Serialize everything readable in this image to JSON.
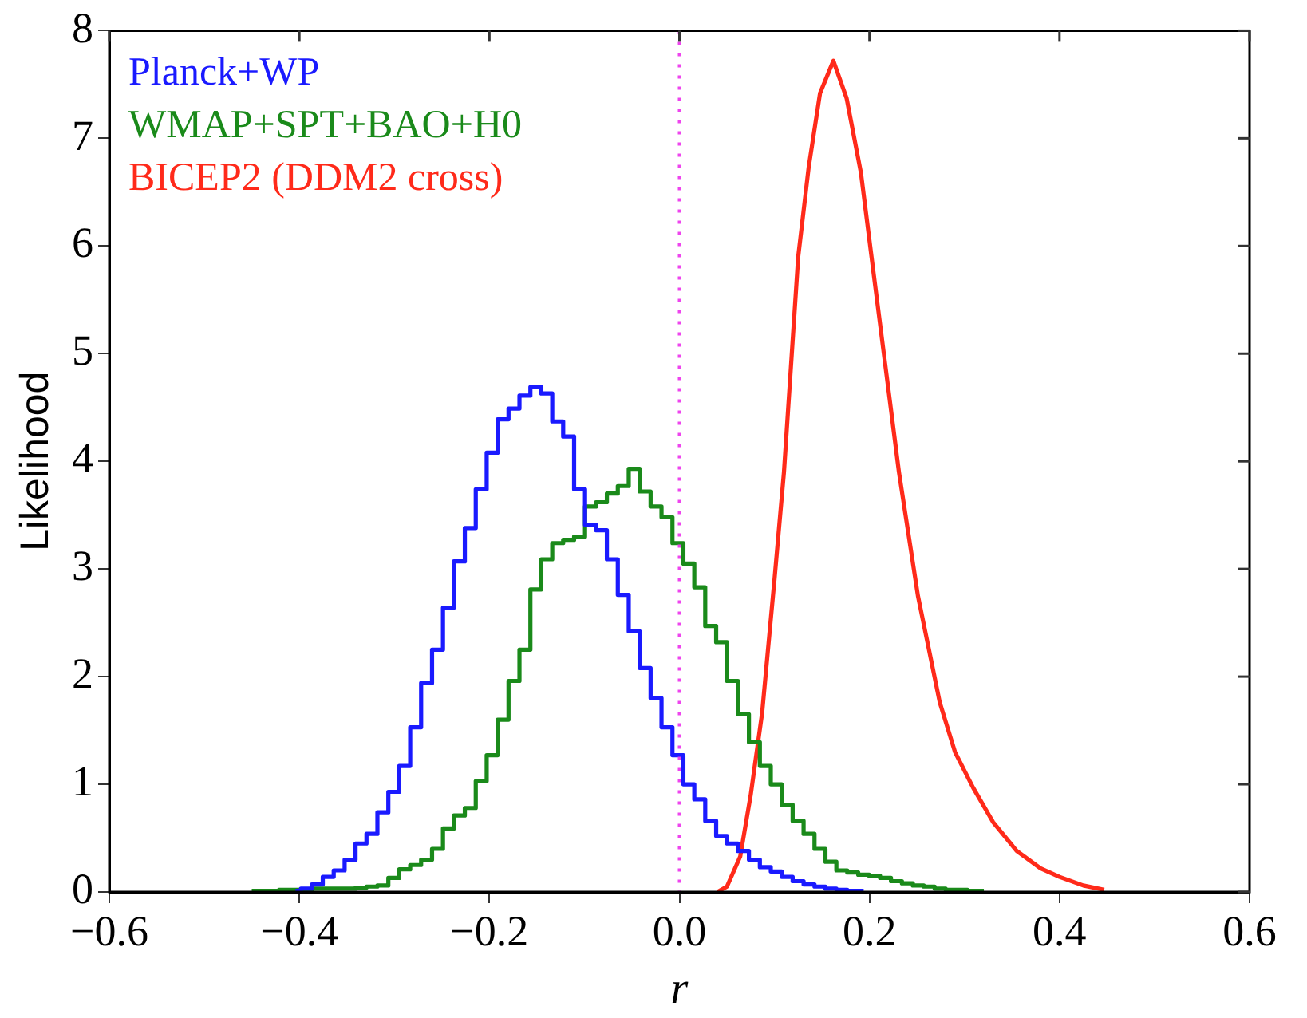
{
  "chart_data": {
    "type": "step",
    "xlabel": "r",
    "ylabel": "Likelihood",
    "x": [
      -0.4501,
      -0.4386,
      -0.4271,
      -0.4156,
      -0.4041,
      -0.3926,
      -0.3811,
      -0.3696,
      -0.3581,
      -0.3466,
      -0.3351,
      -0.3236,
      -0.3121,
      -0.3006,
      -0.2891,
      -0.2776,
      -0.2661,
      -0.2546,
      -0.2431,
      -0.2316,
      -0.2201,
      -0.2086,
      -0.1971,
      -0.1856,
      -0.1741,
      -0.1626,
      -0.1511,
      -0.1396,
      -0.1281,
      -0.1166,
      -0.1051,
      -0.0936,
      -0.0821,
      -0.0706,
      -0.0591,
      -0.0476,
      -0.0361,
      -0.0246,
      -0.0131,
      -0.0016,
      0.0099,
      0.0214,
      0.0329,
      0.0444,
      0.0559,
      0.0674,
      0.0789,
      0.0904,
      0.1019,
      0.1134,
      0.1249,
      0.1364,
      0.1479,
      0.1594,
      0.1709,
      0.1824,
      0.1939,
      0.2054,
      0.2169,
      0.2284,
      0.2399,
      0.2514,
      0.2629,
      0.2744,
      0.2859,
      0.2974,
      0.3089,
      0.3204
    ],
    "series": [
      {
        "name": "Planck+WP",
        "color": "#1a1aff",
        "values": [
          null,
          null,
          null,
          null,
          0.01,
          0.03,
          0.07,
          0.14,
          0.2,
          0.3,
          0.45,
          0.54,
          0.74,
          0.93,
          1.17,
          1.53,
          1.94,
          2.25,
          2.64,
          3.07,
          3.38,
          3.74,
          4.08,
          4.39,
          4.49,
          4.61,
          4.69,
          4.63,
          4.37,
          4.23,
          3.74,
          3.41,
          3.36,
          3.09,
          2.76,
          2.42,
          2.08,
          1.8,
          1.53,
          1.27,
          1.0,
          0.86,
          0.66,
          0.52,
          0.45,
          0.38,
          0.3,
          0.23,
          0.19,
          0.14,
          0.1,
          0.07,
          0.05,
          0.03,
          0.02,
          0.01,
          0.01,
          null,
          null,
          null,
          null,
          null,
          null,
          null,
          null,
          null,
          null,
          null
        ]
      },
      {
        "name": "WMAP+SPT+BAO+H0",
        "color": "#1a8a1a",
        "values": [
          0.01,
          0.01,
          0.01,
          0.02,
          0.02,
          0.02,
          0.03,
          0.03,
          0.03,
          0.03,
          0.04,
          0.05,
          0.06,
          0.13,
          0.21,
          0.25,
          0.3,
          0.4,
          0.59,
          0.71,
          0.78,
          1.03,
          1.27,
          1.6,
          1.96,
          2.25,
          2.81,
          3.09,
          3.24,
          3.27,
          3.3,
          3.58,
          3.62,
          3.7,
          3.77,
          3.93,
          3.72,
          3.58,
          3.48,
          3.24,
          3.05,
          2.83,
          2.47,
          2.32,
          1.96,
          1.65,
          1.39,
          1.17,
          1.0,
          0.81,
          0.66,
          0.54,
          0.4,
          0.28,
          0.2,
          0.18,
          0.16,
          0.15,
          0.13,
          0.1,
          0.08,
          0.06,
          0.05,
          0.03,
          0.02,
          0.02,
          0.01,
          0.01
        ]
      },
      {
        "name": "BICEP2 (DDM2 cross)",
        "color": "#ff2a1a",
        "type": "line",
        "x": [
          0.04,
          0.05,
          0.064,
          0.075,
          0.087,
          0.1,
          0.11,
          0.125,
          0.136,
          0.148,
          0.162,
          0.176,
          0.191,
          0.205,
          0.218,
          0.231,
          0.251,
          0.274,
          0.29,
          0.309,
          0.33,
          0.355,
          0.38,
          0.4,
          0.425,
          0.447
        ],
        "values": [
          0,
          0.05,
          0.33,
          0.9,
          1.66,
          2.9,
          3.9,
          5.9,
          6.73,
          7.42,
          7.72,
          7.37,
          6.68,
          5.7,
          4.8,
          3.9,
          2.75,
          1.76,
          1.3,
          0.97,
          0.65,
          0.38,
          0.22,
          0.14,
          0.06,
          0.02
        ]
      }
    ],
    "xlim": [
      -0.6,
      0.6
    ],
    "xticks": [
      {
        "value": -0.6,
        "label": "−0.6"
      },
      {
        "value": -0.4,
        "label": "−0.4"
      },
      {
        "value": -0.2,
        "label": "−0.2"
      },
      {
        "value": 0,
        "label": "0.0"
      },
      {
        "value": 0.2,
        "label": "0.2"
      },
      {
        "value": 0.4,
        "label": "0.4"
      },
      {
        "value": 0.6,
        "label": "0.6"
      }
    ],
    "ylim": [
      0,
      8
    ],
    "yticks": [
      0,
      1,
      2,
      3,
      4,
      5,
      6,
      7,
      8
    ],
    "ref_lines": [
      {
        "axis": "x",
        "value": 0,
        "color": "#ee44ee",
        "line_style": "dotted"
      }
    ],
    "legend": "top left"
  }
}
